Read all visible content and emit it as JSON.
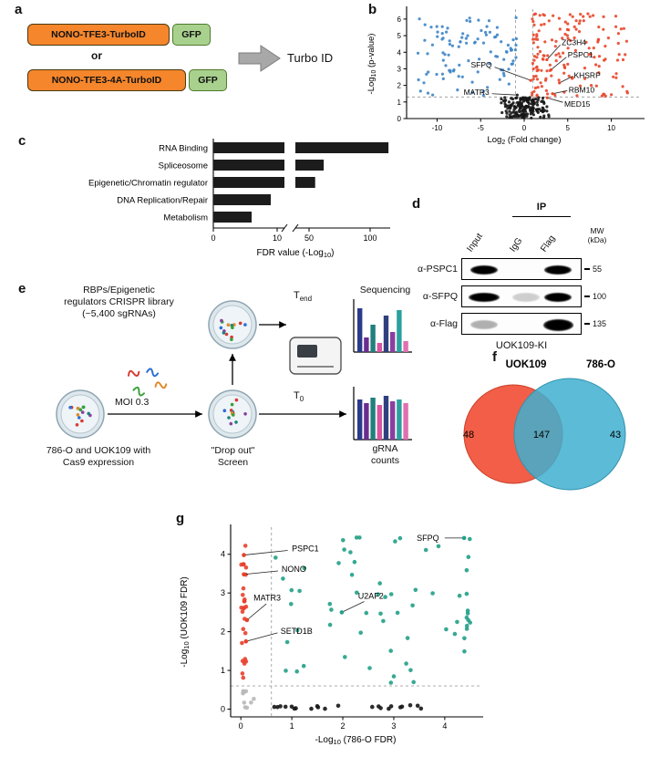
{
  "panels": {
    "a": {
      "label": "a",
      "construct1": "NONO-TFE3-TurboID",
      "construct2": "NONO-TFE3-4A-TurboID",
      "or_text": "or",
      "gfp": "GFP",
      "arrow_label": "Turbo ID",
      "construct_color": "#f5862c",
      "gfp_color": "#a9d18e"
    },
    "b": {
      "label": "b"
    },
    "c": {
      "label": "c"
    },
    "d": {
      "label": "d",
      "ip_header": "IP",
      "lanes": [
        "Input",
        "IgG",
        "Flag"
      ],
      "mw_lines": [
        "MW",
        "(kDa)"
      ],
      "rows": [
        {
          "antibody": "α-PSPC1",
          "mw": "55",
          "bands": [
            {
              "lane": 0,
              "strength": 1
            },
            {
              "lane": 2,
              "strength": 1
            }
          ]
        },
        {
          "antibody": "α-SFPQ",
          "mw": "100",
          "bands": [
            {
              "lane": 0,
              "strength": 1,
              "w": 34
            },
            {
              "lane": 1,
              "strength": 0.18
            },
            {
              "lane": 2,
              "strength": 1
            }
          ]
        },
        {
          "antibody": "α-Flag",
          "mw": "135",
          "bands": [
            {
              "lane": 0,
              "strength": 0.3
            },
            {
              "lane": 2,
              "strength": 1,
              "h": 13,
              "w": 33
            }
          ]
        }
      ],
      "cell_line": "UOK109-KI"
    },
    "e": {
      "label": "e",
      "library_lines": [
        "RBPs/Epigenetic",
        "regulators CRISPR library",
        "(~5,400 sgRNAs)"
      ],
      "moi_label": "MOI 0.3",
      "cells_lines": [
        "786-O and UOK109 with",
        "Cas9 expression"
      ],
      "screen_lines": [
        "\"Drop out\"",
        "Screen"
      ],
      "t_base": "T",
      "t_end_sub": "end",
      "t0_sub": "0",
      "sequencing_label": "Sequencing",
      "grna_lines": [
        "gRNA",
        "counts"
      ],
      "dot_colors": [
        "#d63b2f",
        "#3aa03a",
        "#2b6fd6",
        "#e08a2b",
        "#8a3fa0",
        "#20807d"
      ],
      "bar_colors": [
        "#2b3a8c",
        "#6a2d8f",
        "#20807d",
        "#d9559f",
        "#303f7e",
        "#8a3fa0",
        "#2aa0a0",
        "#e070b0"
      ],
      "tend_chart": {
        "heights": [
          48,
          16,
          30,
          10,
          40,
          22,
          46,
          12
        ]
      },
      "t0_chart": {
        "heights": [
          44,
          40,
          46,
          38,
          48,
          42,
          44,
          40
        ]
      }
    },
    "f": {
      "label": "f"
    },
    "g": {
      "label": "g"
    }
  },
  "chart_data": [
    {
      "id": "volcano_b",
      "type": "scatter",
      "xlabel": {
        "pre": "Log",
        "sub": "2",
        "post": " (Fold change)"
      },
      "ylabel": {
        "pre": "-Log",
        "sub": "10",
        "post": " (p-value)"
      },
      "xlim": [
        -13.5,
        13.5
      ],
      "ylim": [
        0,
        6.6
      ],
      "xticks": [
        -10,
        -5,
        0,
        5,
        10
      ],
      "yticks": [
        0,
        1,
        2,
        3,
        4,
        5,
        6
      ],
      "vlines": [
        -1,
        1
      ],
      "hlines": [
        1.3
      ],
      "seed": 7,
      "clusters": [
        {
          "name": "enriched",
          "color": "#e8472b",
          "n": 155,
          "x": [
            0.9,
            12.2
          ],
          "xpow": 1.7,
          "y": [
            1.35,
            6.35
          ],
          "ypow": 1.15
        },
        {
          "name": "depleted",
          "color": "#3d85c6",
          "n": 105,
          "x": [
            -0.9,
            -12.2
          ],
          "xpow": 1.1,
          "y": [
            1.35,
            6.2
          ],
          "ypow": 1.0
        },
        {
          "name": "nonsignificant",
          "color": "#161616",
          "n": 175,
          "x": [
            -3.0,
            3.0
          ],
          "xtri": true,
          "y": [
            0.03,
            1.28
          ],
          "ypow": 1.0
        }
      ],
      "labels": [
        {
          "text": "SFPQ",
          "color": "#e8472b",
          "tx": -3.7,
          "ty": 3.25,
          "anchor": "end",
          "x1": -3.4,
          "y1": 3.1,
          "px": 0.75,
          "py": 2.3
        },
        {
          "text": "MATR3",
          "color": "#2a2a2a",
          "tx": -4.0,
          "ty": 1.6,
          "anchor": "end",
          "x1": -3.7,
          "y1": 1.5,
          "px": -0.8,
          "py": 1.42
        },
        {
          "text": "ZC3H4",
          "color": "#e8472b",
          "tx": 4.3,
          "ty": 4.6,
          "anchor": "start",
          "x1": 4.15,
          "y1": 4.45,
          "px": 2.6,
          "py": 3.55
        },
        {
          "text": "PSPC1",
          "color": "#e8472b",
          "tx": 5.0,
          "ty": 3.85,
          "anchor": "start",
          "x1": 4.85,
          "y1": 3.7,
          "px": 3.1,
          "py": 2.95
        },
        {
          "text": "KHSRP",
          "color": "#e8472b",
          "tx": 5.7,
          "ty": 2.6,
          "anchor": "start",
          "x1": 5.55,
          "y1": 2.55,
          "px": 4.05,
          "py": 2.15
        },
        {
          "text": "RBM10",
          "color": "#e8472b",
          "tx": 5.1,
          "ty": 1.72,
          "anchor": "start",
          "x1": 4.95,
          "y1": 1.68,
          "px": 3.25,
          "py": 1.5
        },
        {
          "text": "MED15",
          "color": "#e8472b",
          "tx": 4.6,
          "ty": 0.88,
          "anchor": "start",
          "x1": 4.45,
          "y1": 0.98,
          "px": 2.65,
          "py": 1.25
        }
      ]
    },
    {
      "id": "fdr_bars_c",
      "type": "bar",
      "orientation": "horizontal",
      "categories": [
        "RNA Binding",
        "Spliceosome",
        "Epigenetic/Chromatin regulator",
        "DNA Replication/Repair",
        "Metabolism"
      ],
      "values": [
        115,
        62,
        55,
        9,
        6
      ],
      "bar_color": "#1c1c1c",
      "xlabel": {
        "pre": "FDR value (-Log",
        "sub": "10",
        "post": ")"
      },
      "axis_break": {
        "left_max": 11,
        "right_min": 50
      },
      "xticks": [
        0,
        10,
        50,
        100
      ]
    },
    {
      "id": "venn_f",
      "type": "venn",
      "sets": [
        {
          "label": "UOK109",
          "color": "#f1573f",
          "text_color": "#f1573f",
          "only_count": 48
        },
        {
          "label": "786-O",
          "color": "#3fafcf",
          "text_color": "#41b6e6",
          "only_count": 43
        }
      ],
      "intersection_count": 147
    },
    {
      "id": "screen_g",
      "type": "scatter",
      "xlabel": {
        "pre": "-Log",
        "sub": "10",
        "post": " (786-O FDR)"
      },
      "ylabel": {
        "pre": "-Log",
        "sub": "10",
        "post": " (UOK109 FDR)"
      },
      "xlim": [
        -0.2,
        4.7
      ],
      "ylim": [
        -0.2,
        4.7
      ],
      "xticks": [
        0,
        1,
        2,
        3,
        4
      ],
      "yticks": [
        0,
        1,
        2,
        3,
        4
      ],
      "vlines": [
        0.6
      ],
      "hlines": [
        0.6
      ],
      "seed": 11,
      "clusters": [
        {
          "name": "uok109-specific",
          "color": "#e8402c",
          "n": 26,
          "x": [
            0.0,
            0.12
          ],
          "y": [
            0.72,
            4.3
          ]
        },
        {
          "name": "shared-hits",
          "color": "#21a087",
          "n": 48,
          "x": [
            0.65,
            4.3
          ],
          "y": [
            0.68,
            4.35
          ]
        },
        {
          "name": "shared-hits-capped",
          "color": "#21a087",
          "n": 13,
          "x": [
            4.38,
            4.5
          ],
          "y": [
            1.3,
            4.45
          ]
        },
        {
          "name": "shared-hits-top",
          "color": "#21a087",
          "n": 4,
          "x": [
            2.0,
            4.0
          ],
          "y": [
            4.35,
            4.45
          ]
        },
        {
          "name": "786o-specific",
          "color": "#161616",
          "n": 22,
          "x": [
            0.65,
            3.6
          ],
          "xpow": 1.3,
          "y": [
            0.0,
            0.1
          ]
        },
        {
          "name": "nonhits",
          "color": "#b8b8b8",
          "n": 9,
          "x": [
            0.02,
            0.5
          ],
          "xpow": 1.2,
          "y": [
            0.02,
            0.5
          ],
          "ypow": 1.2
        }
      ],
      "labels": [
        {
          "text": "PSPC1",
          "color": "#e8402c",
          "tx": 1.0,
          "ty": 4.15,
          "anchor": "start",
          "x1": 0.92,
          "y1": 4.1,
          "px": 0.06,
          "py": 3.98
        },
        {
          "text": "NONO",
          "color": "#e8402c",
          "tx": 0.8,
          "ty": 3.62,
          "anchor": "start",
          "x1": 0.73,
          "y1": 3.57,
          "px": 0.06,
          "py": 3.48
        },
        {
          "text": "MATR3",
          "color": "#e8402c",
          "tx": 0.25,
          "ty": 2.88,
          "anchor": "start",
          "x1": 0.5,
          "y1": 2.72,
          "px": 0.12,
          "py": 2.3
        },
        {
          "text": "SETD1B",
          "color": "#e8402c",
          "tx": 0.78,
          "ty": 2.02,
          "anchor": "start",
          "x1": 0.72,
          "y1": 1.97,
          "px": 0.1,
          "py": 1.75
        },
        {
          "text": "U2AF2",
          "color": "#21a087",
          "tx": 2.3,
          "ty": 2.92,
          "anchor": "start",
          "x1": 2.42,
          "y1": 2.78,
          "px": 1.98,
          "py": 2.5
        },
        {
          "text": "SFPQ",
          "color": "#21a087",
          "tx": 3.45,
          "ty": 4.42,
          "anchor": "start",
          "x1": 4.0,
          "y1": 4.42,
          "px": 4.38,
          "py": 4.42
        }
      ]
    }
  ]
}
